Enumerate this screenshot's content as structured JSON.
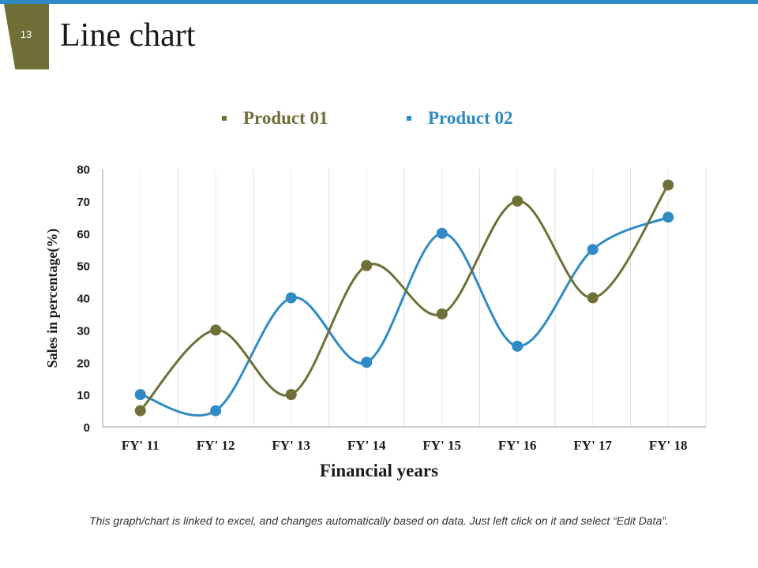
{
  "slide": {
    "number": "13",
    "title": "Line chart",
    "footer_note": "This graph/chart is linked to excel, and changes automatically based on data. Just left click on it and select “Edit Data”."
  },
  "colors": {
    "accent_blue": "#2e8bc6",
    "accent_olive": "#6f6f38"
  },
  "chart_data": {
    "type": "line",
    "title": "Line chart",
    "xlabel": "Financial years",
    "ylabel": "Sales in percentage(%)",
    "categories": [
      "FY' 11",
      "FY' 12",
      "FY' 13",
      "FY' 14",
      "FY' 15",
      "FY' 16",
      "FY' 17",
      "FY' 18"
    ],
    "ylim": [
      0,
      80
    ],
    "yticks": [
      0,
      10,
      20,
      30,
      40,
      50,
      60,
      70,
      80
    ],
    "grid": "vertical",
    "smooth": true,
    "legend_position": "top-center",
    "series": [
      {
        "name": "Product 01",
        "color": "#6f6f38",
        "values": [
          5,
          30,
          10,
          50,
          35,
          70,
          40,
          75
        ]
      },
      {
        "name": "Product 02",
        "color": "#2e8bc6",
        "values": [
          10,
          5,
          40,
          20,
          60,
          25,
          55,
          65
        ]
      }
    ]
  }
}
